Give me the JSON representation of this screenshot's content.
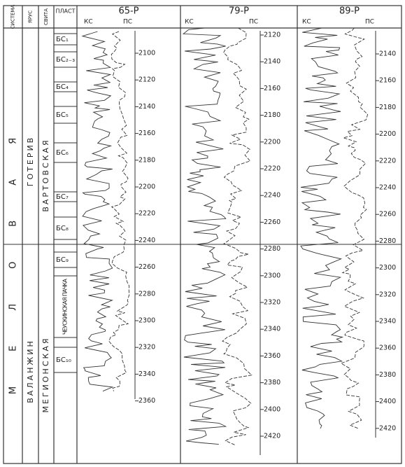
{
  "header": {
    "columns": [
      "СИСТЕМА",
      "ЯРУС",
      "СВИТА",
      "ПЛАСТ"
    ]
  },
  "system": "МЕЛОВАЯ",
  "stages": [
    "ГОТЕРИВ",
    "ВАЛАНЖИН"
  ],
  "suites": [
    "ВАРТОВСКАЯ",
    "МЕГИОНСКАЯ"
  ],
  "layers": [
    "БС₁",
    "БС₂₋₃",
    "БС₄",
    "БС₅",
    "БС₆",
    "БС₇",
    "БС₈",
    "БС₉",
    "ЧЕУСКИНСКАЯ ПАЧКА",
    "БС₁₀"
  ],
  "wells": [
    {
      "name": "65-Р",
      "curves": [
        "КС",
        "ПС"
      ],
      "depths": [
        2100,
        2120,
        2140,
        2160,
        2180,
        2200,
        2220,
        2240,
        2260,
        2280,
        2300,
        2320,
        2340,
        2360
      ]
    },
    {
      "name": "79-Р",
      "curves": [
        "КС",
        "ПС"
      ],
      "depths": [
        2120,
        2140,
        2160,
        2180,
        2200,
        2220,
        2240,
        2260,
        2280,
        2300,
        2320,
        2340,
        2360,
        2380,
        2400,
        2420
      ]
    },
    {
      "name": "89-Р",
      "curves": [
        "КС",
        "ПС"
      ],
      "depths": [
        2140,
        2160,
        2180,
        2200,
        2220,
        2240,
        2260,
        2280,
        2300,
        2320,
        2340,
        2360,
        2380,
        2400,
        2420
      ]
    }
  ]
}
